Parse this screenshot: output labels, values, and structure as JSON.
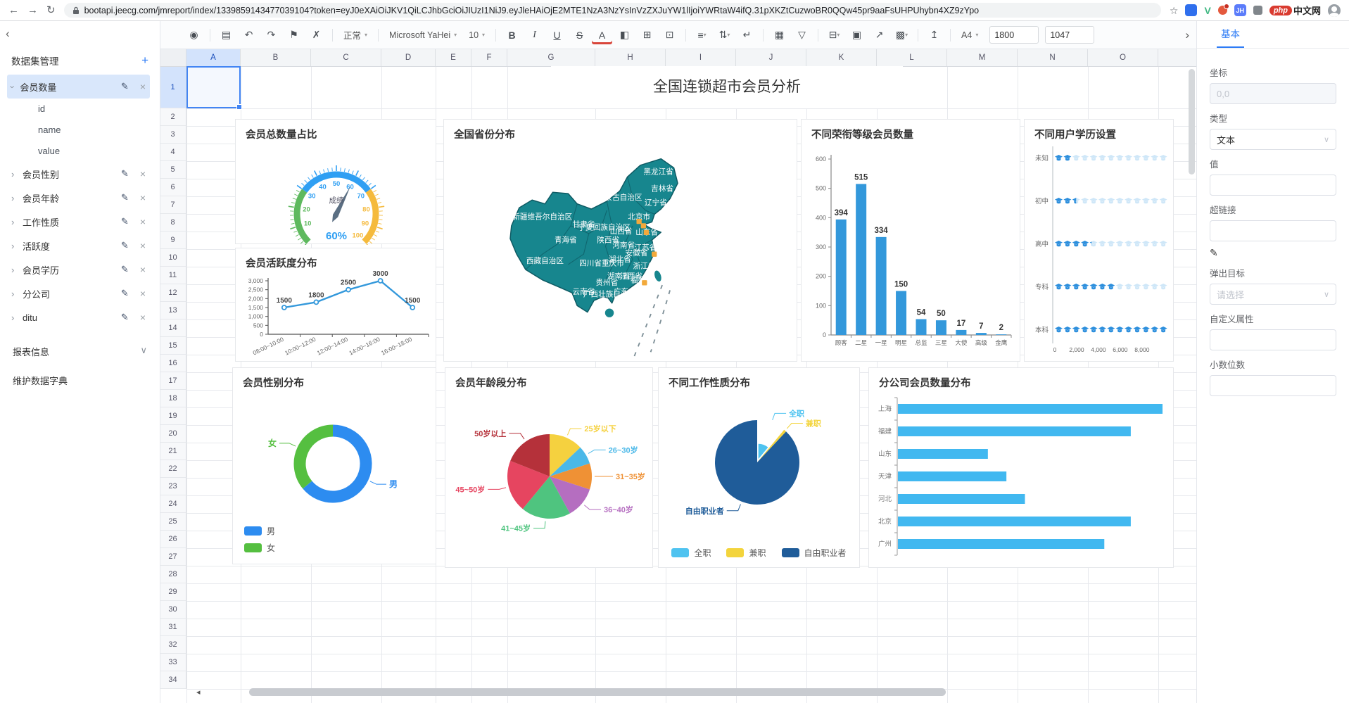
{
  "browser": {
    "url": "bootapi.jeecg.com/jmreport/index/1339859143477039104?token=eyJ0eXAiOiJKV1QiLCJhbGciOiJIUzI1NiJ9.eyJleHAiOjE2MTE1NzA3NzYsInVzZXJuYW1lIjoiYWRtaW4ifQ.31pXKZtCuzwoBR0QQw45pr9aaFsUHPUhybn4XZ9zYpo",
    "ext_jh": "JH",
    "ext_vue": "V",
    "ext_php": "php",
    "ext_php_suffix": "中文网"
  },
  "toolbar": {
    "style_dd": "正常",
    "font_dd": "Microsoft YaHei",
    "size_dd": "10",
    "page_dd": "A4",
    "width_value": "1800",
    "height_value": "1047"
  },
  "sidebar": {
    "title": "数据集管理",
    "add": "+",
    "datasets": [
      {
        "label": "会员数量",
        "selected": true,
        "expanded": true,
        "fields": [
          "id",
          "name",
          "value"
        ]
      },
      {
        "label": "会员性别"
      },
      {
        "label": "会员年龄"
      },
      {
        "label": "工作性质"
      },
      {
        "label": "活跃度"
      },
      {
        "label": "会员学历"
      },
      {
        "label": "分公司"
      },
      {
        "label": "ditu"
      }
    ],
    "sections": [
      {
        "label": "报表信息",
        "chevron": true
      },
      {
        "label": "维护数据字典"
      }
    ]
  },
  "sheet": {
    "columns": [
      "A",
      "B",
      "C",
      "D",
      "E",
      "F",
      "G",
      "H",
      "I",
      "J",
      "K",
      "L",
      "M",
      "N",
      "O"
    ],
    "row_count": 34,
    "title": "全国连锁超市会员分析",
    "selected_cell": "A1"
  },
  "panel": {
    "tab": "基本",
    "fields": [
      {
        "label": "坐标",
        "value": "0,0",
        "kind": "input-disabled"
      },
      {
        "label": "类型",
        "value": "文本",
        "kind": "select"
      },
      {
        "label": "值",
        "value": "",
        "kind": "input"
      },
      {
        "label": "超链接",
        "value": "",
        "kind": "input",
        "pencil_after": true
      },
      {
        "label": "弹出目标",
        "placeholder": "请选择",
        "kind": "select-placeholder"
      },
      {
        "label": "自定义属性",
        "value": "",
        "kind": "input"
      },
      {
        "label": "小数位数",
        "value": "",
        "kind": "input"
      }
    ]
  },
  "chart_data": [
    {
      "type": "gauge",
      "title": "会员总数量占比",
      "name": "成绩",
      "value": 60,
      "value_label": "60%",
      "min": 0,
      "max": 100,
      "tick_values": [
        10,
        20,
        30,
        40,
        50,
        60,
        70,
        80,
        90,
        100
      ],
      "bands": [
        {
          "to": 30,
          "color": "#5eb95e"
        },
        {
          "to": 70,
          "color": "#2f9ff3"
        },
        {
          "to": 100,
          "color": "#f5ba3c"
        }
      ],
      "needle_color": "#5b6f83",
      "value_color": "#2f9ff3"
    },
    {
      "type": "map",
      "title": "全国省份分布",
      "fill": "#17868e",
      "marker_color": "#f2a93b",
      "labels": [
        {
          "t": "黑龙江省",
          "x": 65,
          "y": 13
        },
        {
          "t": "吉林省",
          "x": 66.5,
          "y": 19.5
        },
        {
          "t": "辽宁省",
          "x": 64,
          "y": 25
        },
        {
          "t": "内蒙古自治区",
          "x": 50,
          "y": 23
        },
        {
          "t": "北京市",
          "x": 57.5,
          "y": 30.5
        },
        {
          "t": "新疆维吾尔自治区",
          "x": 20,
          "y": 30.5
        },
        {
          "t": "甘肃省",
          "x": 36,
          "y": 33.5
        },
        {
          "t": "宁夏回族自治区",
          "x": 44,
          "y": 34.5
        },
        {
          "t": "山西省",
          "x": 50.5,
          "y": 36
        },
        {
          "t": "陕西省",
          "x": 45.5,
          "y": 39.5
        },
        {
          "t": "青海省",
          "x": 29,
          "y": 39.5
        },
        {
          "t": "山东省",
          "x": 60.5,
          "y": 36.5
        },
        {
          "t": "河南省",
          "x": 51.5,
          "y": 41.5
        },
        {
          "t": "江苏省",
          "x": 60,
          "y": 42.5
        },
        {
          "t": "安徽省",
          "x": 56.5,
          "y": 44.5
        },
        {
          "t": "西藏自治区",
          "x": 21,
          "y": 47.5
        },
        {
          "t": "四川省重庆市",
          "x": 43,
          "y": 48.5
        },
        {
          "t": "湖北省",
          "x": 50,
          "y": 47
        },
        {
          "t": "浙江省",
          "x": 59.5,
          "y": 49.5
        },
        {
          "t": "湖南省",
          "x": 49.5,
          "y": 53.5
        },
        {
          "t": "江西省",
          "x": 54.5,
          "y": 53.5
        },
        {
          "t": "贵州省",
          "x": 45,
          "y": 56
        },
        {
          "t": "福建省",
          "x": 58.5,
          "y": 55
        },
        {
          "t": "云南省",
          "x": 36,
          "y": 59.5
        },
        {
          "t": "广西壮族自治区",
          "x": 46,
          "y": 60.5
        },
        {
          "t": "广东省",
          "x": 52,
          "y": 59.5
        }
      ],
      "markers": [
        [
          57.5,
          31.3
        ],
        [
          59.2,
          33
        ],
        [
          60.3,
          35.6
        ],
        [
          63.4,
          44
        ],
        [
          59.6,
          55.1
        ]
      ]
    },
    {
      "type": "vbar",
      "title": "不同荣衔等级会员数量",
      "categories": [
        "顾客",
        "二星",
        "一星",
        "明星",
        "总监",
        "三星",
        "大使",
        "高级",
        "金鹰"
      ],
      "values": [
        394,
        515,
        334,
        150,
        54,
        50,
        17,
        7,
        2
      ],
      "ylim": [
        0,
        600
      ],
      "ytick_step": 100,
      "color": "#3398db"
    },
    {
      "type": "pictorial",
      "title": "不同用户学历设置",
      "categories": [
        "未知",
        "初中",
        "高中",
        "专科",
        "本科"
      ],
      "values": [
        1600,
        2000,
        3400,
        5600,
        10400
      ],
      "per_icon": 800,
      "icons_max": 13,
      "xticks": [
        0,
        2000,
        4000,
        6000,
        8000
      ],
      "color": "#2d8fdd",
      "color_faded": "#cfe7f8",
      "icon": "graduation-cap"
    },
    {
      "type": "line",
      "title": "会员活跃度分布",
      "categories": [
        "08:00~10:00",
        "10:00~12:00",
        "12:00~14:00",
        "14:00~16:00",
        "16:00~18:00"
      ],
      "values": [
        1500,
        1800,
        2500,
        3000,
        1500
      ],
      "ylim": [
        0,
        3000
      ],
      "ytick_step": 500,
      "color": "#3398db"
    },
    {
      "type": "donut",
      "title": "会员性别分布",
      "slices": [
        {
          "label": "男",
          "value": 64,
          "color": "#2d8cf0"
        },
        {
          "label": "女",
          "value": 36,
          "color": "#55bf40"
        }
      ]
    },
    {
      "type": "pie",
      "title": "会员年龄段分布",
      "slices": [
        {
          "label": "25岁以下",
          "value": 13,
          "color": "#f5d13f"
        },
        {
          "label": "26~30岁",
          "value": 7,
          "color": "#4ab8e8"
        },
        {
          "label": "31~35岁",
          "value": 10,
          "color": "#ef9135"
        },
        {
          "label": "36~40岁",
          "value": 12,
          "color": "#b56ec0"
        },
        {
          "label": "41~45岁",
          "value": 19,
          "color": "#4fc47f"
        },
        {
          "label": "45~50岁",
          "value": 20,
          "color": "#e64560"
        },
        {
          "label": "50岁以上",
          "value": 19,
          "color": "#b5313a"
        }
      ]
    },
    {
      "type": "pie",
      "title": "不同工作性质分布",
      "legend": true,
      "slices": [
        {
          "label": "全职",
          "value": 11,
          "color": "#4fc3f0",
          "r_scale": 0.36,
          "offset": 5
        },
        {
          "label": "兼职",
          "value": 1,
          "color": "#f3d43c"
        },
        {
          "label": "自由职业者",
          "value": 88,
          "color": "#1f5c99"
        }
      ]
    },
    {
      "type": "hbar",
      "title": "分公司会员数量分布",
      "categories": [
        "上海",
        "福建",
        "山东",
        "天津",
        "河北",
        "北京",
        "广州"
      ],
      "values": [
        10000,
        8800,
        3400,
        4100,
        4800,
        8800,
        7800
      ],
      "color": "#41b8f0"
    }
  ]
}
